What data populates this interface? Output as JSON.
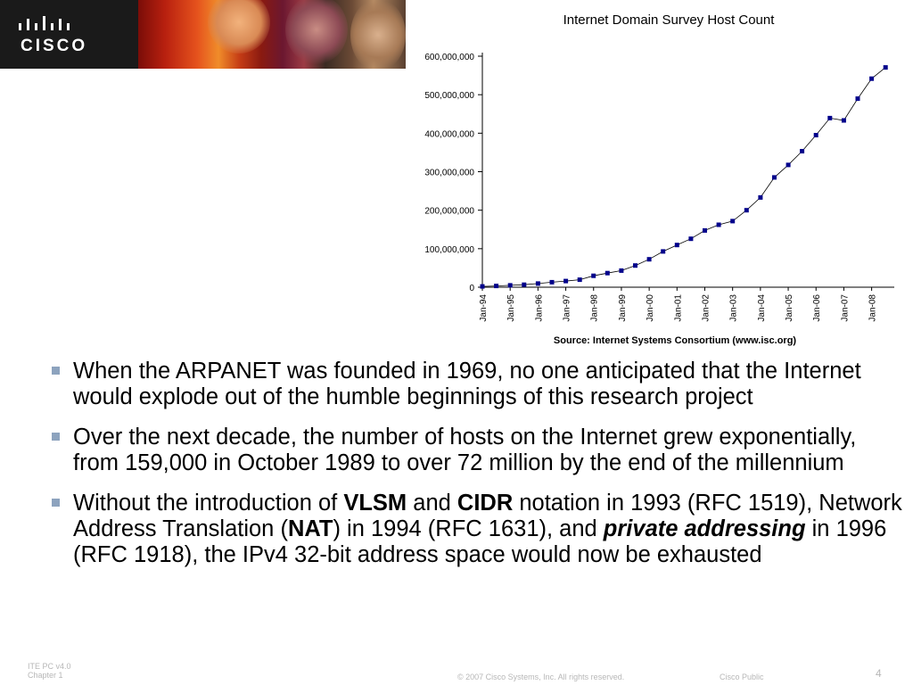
{
  "header": {
    "logo_text": "CISCO"
  },
  "chart_data": {
    "type": "line",
    "title": "Internet Domain Survey Host Count",
    "source": "Source: Internet Systems Consortium (www.isc.org)",
    "xlabel": "",
    "ylabel": "",
    "ylim": [
      0,
      600000000
    ],
    "y_ticks": [
      {
        "value": 0,
        "label": "0"
      },
      {
        "value": 100000000,
        "label": "100,000,000"
      },
      {
        "value": 200000000,
        "label": "200,000,000"
      },
      {
        "value": 300000000,
        "label": "300,000,000"
      },
      {
        "value": 400000000,
        "label": "400,000,000"
      },
      {
        "value": 500000000,
        "label": "500,000,000"
      },
      {
        "value": 600000000,
        "label": "600,000,000"
      }
    ],
    "x_tick_labels": [
      "Jan-94",
      "Jan-95",
      "Jan-96",
      "Jan-97",
      "Jan-98",
      "Jan-99",
      "Jan-00",
      "Jan-01",
      "Jan-02",
      "Jan-03",
      "Jan-04",
      "Jan-05",
      "Jan-06",
      "Jan-07",
      "Jan-08"
    ],
    "grid": false,
    "legend": "none",
    "marker_color": "#00008b",
    "line_color": "#000000",
    "points": [
      {
        "x": 1994.0,
        "y": 2200000
      },
      {
        "x": 1994.5,
        "y": 3200000
      },
      {
        "x": 1995.0,
        "y": 4900000
      },
      {
        "x": 1995.5,
        "y": 6600000
      },
      {
        "x": 1996.0,
        "y": 9500000
      },
      {
        "x": 1996.5,
        "y": 12900000
      },
      {
        "x": 1997.0,
        "y": 16100000
      },
      {
        "x": 1997.5,
        "y": 19500000
      },
      {
        "x": 1998.0,
        "y": 29700000
      },
      {
        "x": 1998.5,
        "y": 36700000
      },
      {
        "x": 1999.0,
        "y": 43200000
      },
      {
        "x": 1999.5,
        "y": 56200000
      },
      {
        "x": 2000.0,
        "y": 72400000
      },
      {
        "x": 2000.5,
        "y": 93000000
      },
      {
        "x": 2001.0,
        "y": 109600000
      },
      {
        "x": 2001.5,
        "y": 125900000
      },
      {
        "x": 2002.0,
        "y": 147300000
      },
      {
        "x": 2002.5,
        "y": 162100000
      },
      {
        "x": 2003.0,
        "y": 171600000
      },
      {
        "x": 2003.5,
        "y": 200000000
      },
      {
        "x": 2004.0,
        "y": 233100000
      },
      {
        "x": 2004.5,
        "y": 285100000
      },
      {
        "x": 2005.0,
        "y": 317600000
      },
      {
        "x": 2005.5,
        "y": 353300000
      },
      {
        "x": 2006.0,
        "y": 394900000
      },
      {
        "x": 2006.5,
        "y": 439300000
      },
      {
        "x": 2007.0,
        "y": 433200000
      },
      {
        "x": 2007.5,
        "y": 489800000
      },
      {
        "x": 2008.0,
        "y": 541700000
      },
      {
        "x": 2008.5,
        "y": 570900000
      }
    ]
  },
  "bullets": [
    {
      "parts": [
        {
          "text": "When the ARPANET was founded in 1969, no one anticipated that the Internet  would explode out of the humble beginnings of this research project",
          "style": "normal"
        }
      ]
    },
    {
      "parts": [
        {
          "text": "Over the next decade, the number of hosts on the Internet grew exponentially, from 159,000 in October 1989 to over 72 million by the end of the millennium",
          "style": "normal"
        }
      ]
    },
    {
      "parts": [
        {
          "text": "Without the introduction of ",
          "style": "normal"
        },
        {
          "text": "VLSM",
          "style": "bold"
        },
        {
          "text": " and ",
          "style": "normal"
        },
        {
          "text": "CIDR",
          "style": "bold"
        },
        {
          "text": " notation in 1993 (RFC 1519), Network Address Translation (",
          "style": "normal"
        },
        {
          "text": "NAT",
          "style": "bold"
        },
        {
          "text": ") in 1994 (RFC 1631), and ",
          "style": "normal"
        },
        {
          "text": "private addressing",
          "style": "bold-italic"
        },
        {
          "text": " in 1996 (RFC 1918), the IPv4 32-bit address space would now be exhausted",
          "style": "normal"
        }
      ]
    }
  ],
  "footer": {
    "course_line1": "ITE PC v4.0",
    "course_line2": "Chapter 1",
    "copyright": "© 2007 Cisco Systems, Inc. All rights reserved.",
    "classification": "Cisco Public",
    "page_number": "4"
  }
}
